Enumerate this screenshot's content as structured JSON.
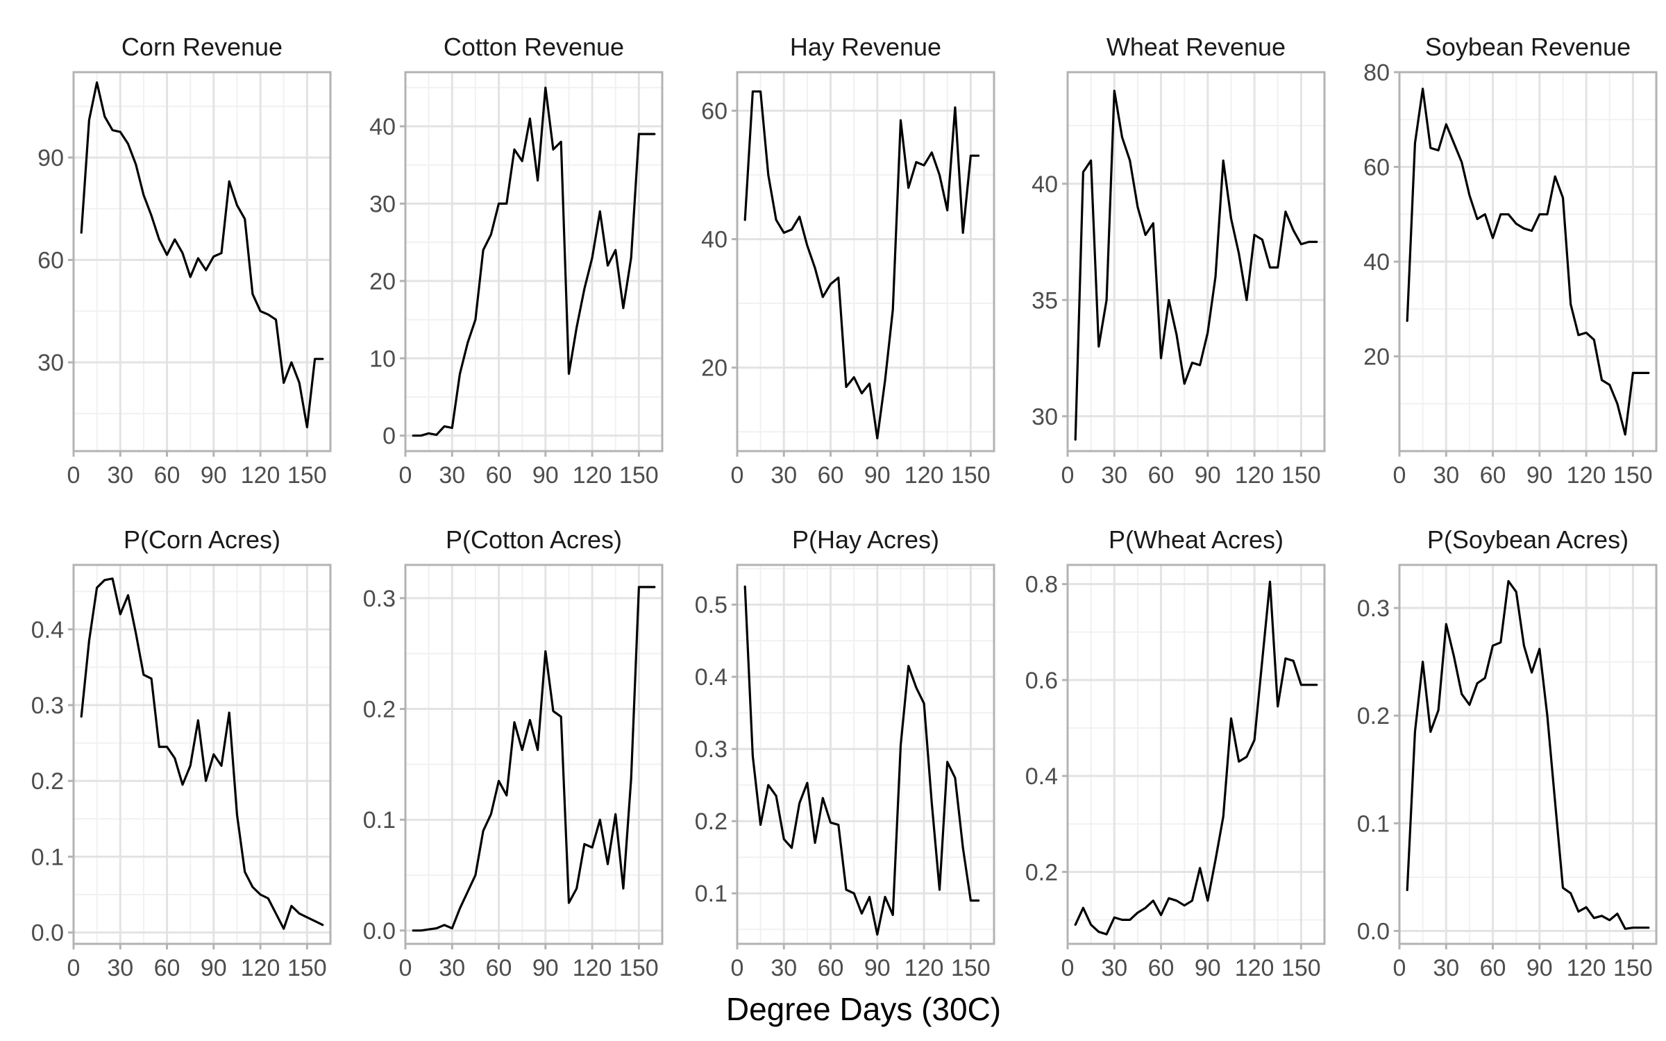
{
  "figure": {
    "xlabel": "Degree Days (30C)",
    "line_color": "#000000"
  },
  "chart_data": [
    {
      "type": "line",
      "title": "Corn Revenue",
      "xlim": [
        0,
        165
      ],
      "ylim": [
        4,
        115
      ],
      "xticks": [
        0,
        30,
        60,
        90,
        120,
        150
      ],
      "yticks": [
        30,
        60,
        90
      ],
      "grid": true,
      "x": [
        5,
        10,
        15,
        20,
        25,
        30,
        35,
        40,
        45,
        50,
        55,
        60,
        65,
        70,
        75,
        80,
        85,
        90,
        95,
        100,
        105,
        110,
        115,
        120,
        125,
        130,
        135,
        140,
        145,
        150,
        155,
        160
      ],
      "values": [
        68,
        101,
        112,
        102,
        98,
        97.5,
        94,
        88,
        79,
        73,
        66,
        61.5,
        66,
        62,
        55,
        60.5,
        57,
        61,
        62,
        83,
        76,
        72,
        50,
        45,
        44,
        42.5,
        24,
        30,
        24,
        11,
        31,
        31
      ]
    },
    {
      "type": "line",
      "title": "Cotton Revenue",
      "xlim": [
        0,
        165
      ],
      "ylim": [
        -2,
        47
      ],
      "xticks": [
        0,
        30,
        60,
        90,
        120,
        150
      ],
      "yticks": [
        0,
        10,
        20,
        30,
        40
      ],
      "grid": true,
      "x": [
        5,
        10,
        15,
        20,
        25,
        30,
        35,
        40,
        45,
        50,
        55,
        60,
        65,
        70,
        75,
        80,
        85,
        90,
        95,
        100,
        105,
        110,
        115,
        120,
        125,
        130,
        135,
        140,
        145,
        150,
        155,
        160
      ],
      "values": [
        0,
        0,
        0.3,
        0.1,
        1.2,
        1,
        8,
        12,
        15,
        24,
        26,
        30,
        30,
        37,
        35.5,
        41,
        33,
        45,
        37,
        38,
        8,
        14,
        19,
        23,
        29,
        22,
        24,
        16.5,
        23,
        39,
        39,
        39
      ]
    },
    {
      "type": "line",
      "title": "Hay Revenue",
      "xlim": [
        0,
        165
      ],
      "ylim": [
        7,
        66
      ],
      "xticks": [
        0,
        30,
        60,
        90,
        120,
        150
      ],
      "yticks": [
        20,
        40,
        60
      ],
      "grid": true,
      "x": [
        5,
        10,
        15,
        20,
        25,
        30,
        35,
        40,
        45,
        50,
        55,
        60,
        65,
        70,
        75,
        80,
        85,
        90,
        95,
        100,
        105,
        110,
        115,
        120,
        125,
        130,
        135,
        140,
        145,
        150,
        155
      ],
      "values": [
        43,
        63,
        63,
        50,
        43,
        41,
        41.5,
        43.5,
        39,
        35.5,
        31,
        33,
        34,
        17,
        18.5,
        16,
        17.5,
        9,
        18,
        29,
        58.5,
        48,
        52,
        51.5,
        53.5,
        50,
        44.5,
        60.5,
        41,
        53,
        53
      ]
    },
    {
      "type": "line",
      "title": "Wheat Revenue",
      "xlim": [
        0,
        165
      ],
      "ylim": [
        28.5,
        44.8
      ],
      "xticks": [
        0,
        30,
        60,
        90,
        120,
        150
      ],
      "yticks": [
        30,
        35,
        40
      ],
      "grid": true,
      "x": [
        5,
        10,
        15,
        20,
        25,
        30,
        35,
        40,
        45,
        50,
        55,
        60,
        65,
        70,
        75,
        80,
        85,
        90,
        95,
        100,
        105,
        110,
        115,
        120,
        125,
        130,
        135,
        140,
        145,
        150,
        155,
        160
      ],
      "values": [
        29,
        40.5,
        41,
        33,
        35,
        44,
        42,
        41,
        39,
        37.8,
        38.3,
        32.5,
        35,
        33.5,
        31.4,
        32.3,
        32.2,
        33.6,
        36,
        41,
        38.5,
        37,
        35,
        37.8,
        37.6,
        36.4,
        36.4,
        38.8,
        38,
        37.4,
        37.5,
        37.5
      ]
    },
    {
      "type": "line",
      "title": "Soybean Revenue",
      "xlim": [
        0,
        165
      ],
      "ylim": [
        0,
        80
      ],
      "xticks": [
        0,
        30,
        60,
        90,
        120,
        150
      ],
      "yticks": [
        20,
        40,
        60,
        80
      ],
      "grid": true,
      "x": [
        5,
        10,
        15,
        20,
        25,
        30,
        35,
        40,
        45,
        50,
        55,
        60,
        65,
        70,
        75,
        80,
        85,
        90,
        95,
        100,
        105,
        110,
        115,
        120,
        125,
        130,
        135,
        140,
        145,
        150,
        155,
        160
      ],
      "values": [
        27.5,
        65,
        76.5,
        64,
        63.5,
        69,
        65,
        61,
        54,
        49,
        50,
        45,
        50,
        50,
        48,
        47,
        46.5,
        50,
        50,
        58,
        53.5,
        31,
        24.5,
        25,
        23.5,
        15,
        14,
        10,
        3.5,
        16.5,
        16.5,
        16.5
      ]
    },
    {
      "type": "line",
      "title": "P(Corn Acres)",
      "xlim": [
        0,
        165
      ],
      "ylim": [
        -0.015,
        0.485
      ],
      "xticks": [
        0,
        30,
        60,
        90,
        120,
        150
      ],
      "yticks": [
        0.0,
        0.1,
        0.2,
        0.3,
        0.4
      ],
      "grid": true,
      "x": [
        5,
        10,
        15,
        20,
        25,
        30,
        35,
        40,
        45,
        50,
        55,
        60,
        65,
        70,
        75,
        80,
        85,
        90,
        95,
        100,
        105,
        110,
        115,
        120,
        125,
        130,
        135,
        140,
        145,
        150,
        155,
        160
      ],
      "values": [
        0.285,
        0.385,
        0.455,
        0.465,
        0.467,
        0.42,
        0.445,
        0.395,
        0.34,
        0.335,
        0.245,
        0.245,
        0.23,
        0.195,
        0.22,
        0.28,
        0.2,
        0.235,
        0.22,
        0.29,
        0.155,
        0.08,
        0.06,
        0.05,
        0.045,
        0.025,
        0.005,
        0.035,
        0.025,
        0.02,
        0.015,
        0.01
      ]
    },
    {
      "type": "line",
      "title": "P(Cotton Acres)",
      "xlim": [
        0,
        165
      ],
      "ylim": [
        -0.012,
        0.33
      ],
      "xticks": [
        0,
        30,
        60,
        90,
        120,
        150
      ],
      "yticks": [
        0.0,
        0.1,
        0.2,
        0.3
      ],
      "grid": true,
      "x": [
        5,
        10,
        15,
        20,
        25,
        30,
        35,
        40,
        45,
        50,
        55,
        60,
        65,
        70,
        75,
        80,
        85,
        90,
        95,
        100,
        105,
        110,
        115,
        120,
        125,
        130,
        135,
        140,
        145,
        150,
        155,
        160
      ],
      "values": [
        0,
        0,
        0.001,
        0.002,
        0.005,
        0.002,
        0.02,
        0.035,
        0.05,
        0.09,
        0.105,
        0.135,
        0.122,
        0.188,
        0.163,
        0.19,
        0.163,
        0.252,
        0.198,
        0.193,
        0.025,
        0.038,
        0.078,
        0.075,
        0.1,
        0.06,
        0.105,
        0.038,
        0.137,
        0.31,
        0.31,
        0.31
      ]
    },
    {
      "type": "line",
      "title": "P(Hay Acres)",
      "xlim": [
        0,
        165
      ],
      "ylim": [
        0.03,
        0.555
      ],
      "xticks": [
        0,
        30,
        60,
        90,
        120,
        150
      ],
      "yticks": [
        0.1,
        0.2,
        0.3,
        0.4,
        0.5
      ],
      "grid": true,
      "x": [
        5,
        10,
        15,
        20,
        25,
        30,
        35,
        40,
        45,
        50,
        55,
        60,
        65,
        70,
        75,
        80,
        85,
        90,
        95,
        100,
        105,
        110,
        115,
        120,
        125,
        130,
        135,
        140,
        145,
        150,
        155
      ],
      "values": [
        0.525,
        0.29,
        0.195,
        0.25,
        0.235,
        0.175,
        0.163,
        0.225,
        0.253,
        0.17,
        0.232,
        0.198,
        0.195,
        0.105,
        0.1,
        0.072,
        0.095,
        0.043,
        0.095,
        0.07,
        0.305,
        0.415,
        0.385,
        0.363,
        0.225,
        0.105,
        0.282,
        0.26,
        0.163,
        0.09,
        0.09
      ]
    },
    {
      "type": "line",
      "title": "P(Wheat Acres)",
      "xlim": [
        0,
        165
      ],
      "ylim": [
        0.05,
        0.84
      ],
      "xticks": [
        0,
        30,
        60,
        90,
        120,
        150
      ],
      "yticks": [
        0.2,
        0.4,
        0.6,
        0.8
      ],
      "grid": true,
      "x": [
        5,
        10,
        15,
        20,
        25,
        30,
        35,
        40,
        45,
        50,
        55,
        60,
        65,
        70,
        75,
        80,
        85,
        90,
        95,
        100,
        105,
        110,
        115,
        120,
        125,
        130,
        135,
        140,
        145,
        150,
        155,
        160
      ],
      "values": [
        0.09,
        0.125,
        0.09,
        0.075,
        0.07,
        0.105,
        0.1,
        0.1,
        0.115,
        0.125,
        0.14,
        0.11,
        0.145,
        0.14,
        0.13,
        0.14,
        0.208,
        0.14,
        0.225,
        0.315,
        0.52,
        0.43,
        0.44,
        0.475,
        0.64,
        0.805,
        0.545,
        0.645,
        0.64,
        0.59,
        0.59,
        0.59
      ]
    },
    {
      "type": "line",
      "title": "P(Soybean Acres)",
      "xlim": [
        0,
        165
      ],
      "ylim": [
        -0.012,
        0.34
      ],
      "xticks": [
        0,
        30,
        60,
        90,
        120,
        150
      ],
      "yticks": [
        0.0,
        0.1,
        0.2,
        0.3
      ],
      "grid": true,
      "x": [
        5,
        10,
        15,
        20,
        25,
        30,
        35,
        40,
        45,
        50,
        55,
        60,
        65,
        70,
        75,
        80,
        85,
        90,
        95,
        100,
        105,
        110,
        115,
        120,
        125,
        130,
        135,
        140,
        145,
        150,
        155,
        160
      ],
      "values": [
        0.038,
        0.185,
        0.25,
        0.185,
        0.205,
        0.285,
        0.255,
        0.22,
        0.21,
        0.23,
        0.235,
        0.265,
        0.268,
        0.325,
        0.315,
        0.265,
        0.24,
        0.262,
        0.2,
        0.12,
        0.04,
        0.035,
        0.018,
        0.022,
        0.012,
        0.014,
        0.01,
        0.016,
        0.002,
        0.003,
        0.003,
        0.003
      ]
    }
  ]
}
